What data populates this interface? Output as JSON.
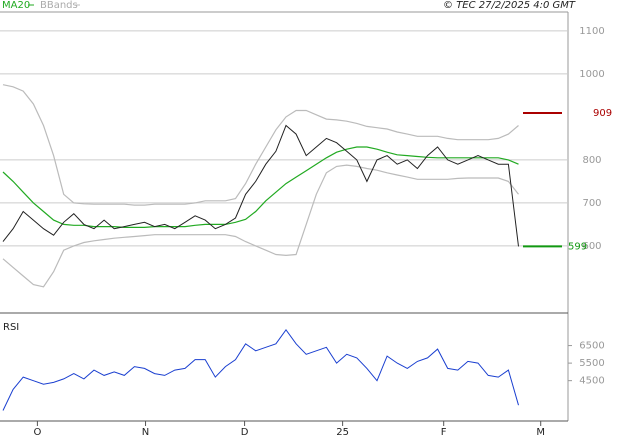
{
  "chart_data": [
    {
      "type": "line",
      "copyright": "© TEC 27/2/2025 4:0 GMT",
      "x": [
        0,
        1,
        2,
        3,
        4,
        5,
        6,
        7,
        8,
        9,
        10,
        11,
        12,
        13,
        14,
        15,
        16,
        17,
        18,
        19,
        20,
        21,
        22,
        23,
        24,
        25,
        26,
        27,
        28,
        29,
        30,
        31,
        32,
        33,
        34,
        35,
        36,
        37,
        38,
        39,
        40,
        41,
        42,
        43,
        44,
        45,
        46,
        47,
        48,
        49,
        50,
        51
      ],
      "xlim": [
        -0.3,
        55.9
      ],
      "ylim": [
        444,
        1144
      ],
      "yticks": [
        600,
        700,
        800,
        1000,
        1100
      ],
      "grid": true,
      "price": {
        "color": "#222222",
        "values": [
          610,
          640,
          680,
          660,
          640,
          625,
          655,
          675,
          650,
          640,
          660,
          640,
          645,
          650,
          655,
          645,
          650,
          640,
          655,
          670,
          660,
          640,
          650,
          665,
          720,
          750,
          790,
          820,
          880,
          860,
          810,
          830,
          850,
          840,
          820,
          800,
          750,
          800,
          810,
          790,
          800,
          780,
          810,
          830,
          800,
          790,
          800,
          810,
          800,
          790,
          790,
          599
        ]
      },
      "series": [
        {
          "name": "MA20",
          "color": "#22aa22",
          "values": [
            772,
            750,
            725,
            700,
            680,
            660,
            650,
            648,
            648,
            645,
            645,
            645,
            643,
            643,
            643,
            645,
            645,
            645,
            645,
            648,
            650,
            650,
            650,
            655,
            662,
            680,
            705,
            725,
            745,
            760,
            775,
            790,
            805,
            818,
            825,
            830,
            830,
            825,
            818,
            812,
            810,
            808,
            806,
            805,
            805,
            805,
            805,
            805,
            805,
            805,
            800,
            790
          ]
        },
        {
          "name": "BBands",
          "color": "#bbbbbb",
          "upper": [
            975,
            970,
            960,
            930,
            880,
            810,
            720,
            700,
            698,
            697,
            697,
            697,
            697,
            695,
            695,
            697,
            697,
            697,
            697,
            700,
            705,
            705,
            705,
            710,
            745,
            790,
            830,
            870,
            900,
            915,
            915,
            905,
            895,
            893,
            890,
            885,
            878,
            875,
            872,
            865,
            860,
            855,
            855,
            855,
            850,
            847,
            847,
            847,
            847,
            850,
            860,
            880
          ],
          "lower": [
            570,
            550,
            530,
            510,
            505,
            540,
            590,
            600,
            608,
            612,
            615,
            618,
            620,
            622,
            624,
            626,
            626,
            626,
            626,
            626,
            626,
            626,
            626,
            622,
            610,
            600,
            590,
            580,
            578,
            580,
            650,
            720,
            770,
            785,
            788,
            785,
            780,
            776,
            770,
            765,
            760,
            755,
            755,
            755,
            755,
            757,
            758,
            758,
            758,
            758,
            750,
            720
          ]
        }
      ],
      "markers": [
        {
          "value": 909,
          "color": "#aa0000"
        },
        {
          "value": 599,
          "color": "#119911"
        }
      ]
    },
    {
      "type": "line",
      "title": "RSI",
      "x": [
        0,
        1,
        2,
        3,
        4,
        5,
        6,
        7,
        8,
        9,
        10,
        11,
        12,
        13,
        14,
        15,
        16,
        17,
        18,
        19,
        20,
        21,
        22,
        23,
        24,
        25,
        26,
        27,
        28,
        29,
        30,
        31,
        32,
        33,
        34,
        35,
        36,
        37,
        38,
        39,
        40,
        41,
        42,
        43,
        44,
        45,
        46,
        47,
        48,
        49,
        50,
        51
      ],
      "xlim": [
        -0.3,
        55.9
      ],
      "xticks": [
        {
          "value": 3.4,
          "label": "O"
        },
        {
          "value": 14.1,
          "label": "N"
        },
        {
          "value": 23.9,
          "label": "D"
        },
        {
          "value": 33.6,
          "label": "25"
        },
        {
          "value": 43.6,
          "label": "F"
        },
        {
          "value": 53.2,
          "label": "M"
        }
      ],
      "ylim": [
        22,
        83
      ],
      "yticks": [
        {
          "value": 45,
          "label": "4500"
        },
        {
          "value": 55,
          "label": "5500"
        },
        {
          "value": 65,
          "label": "6500"
        }
      ],
      "color": "#1a3fd0",
      "values": [
        28,
        40,
        47,
        45,
        43,
        44,
        46,
        49,
        46,
        51,
        48,
        50,
        48,
        53,
        52,
        49,
        48,
        51,
        52,
        57,
        57,
        47,
        53,
        57,
        66,
        62,
        64,
        66,
        74,
        66,
        60,
        62,
        64,
        55,
        60,
        58,
        52,
        45,
        59,
        55,
        52,
        56,
        58,
        63,
        52,
        51,
        56,
        55,
        48,
        47,
        51,
        31
      ]
    }
  ]
}
